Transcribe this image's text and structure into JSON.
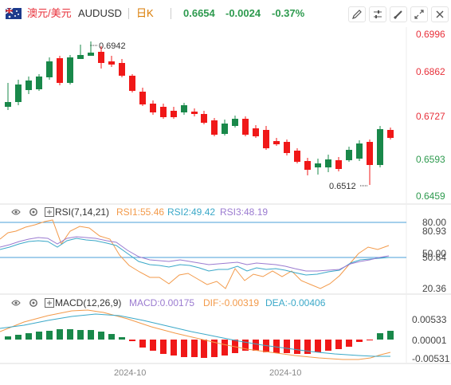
{
  "header": {
    "pair_cn": "澳元/美元",
    "symbol": "AUDUSD",
    "period": "日K",
    "price": "0.6654",
    "change": "-0.0024",
    "change_pct": "-0.37%"
  },
  "price_axis": [
    "0.6996",
    "0.6862",
    "0.6727",
    "0.6593",
    "0.6459"
  ],
  "annotations": {
    "high": "0.6942",
    "low": "0.6512"
  },
  "rsi": {
    "title": "RSI(7,14,21)",
    "rsi1": "RSI1:55.46",
    "rsi2": "RSI2:49.42",
    "rsi3": "RSI3:48.19",
    "axis": [
      "80.00",
      "80.93",
      "50.00",
      "50.64",
      "20.36"
    ]
  },
  "macd": {
    "title": "MACD(12,26,9)",
    "macd": "MACD:0.00175",
    "dif": "DIF:-0.00319",
    "dea": "DEA:-0.00406",
    "axis": [
      "0.00533",
      "0.00001",
      "-0.00531"
    ]
  },
  "time_axis": [
    "2024-10",
    "2024-10"
  ],
  "colors": {
    "up": "#19884a",
    "down": "#f01818",
    "price_text": "#e8313b",
    "change": "#2d9a4e"
  },
  "icons": [
    "pencil-icon",
    "sliders-icon",
    "brush-icon",
    "ruler-icon",
    "expand-icon",
    "close-icon",
    "gear-icon",
    "add-indicator-icon"
  ]
}
